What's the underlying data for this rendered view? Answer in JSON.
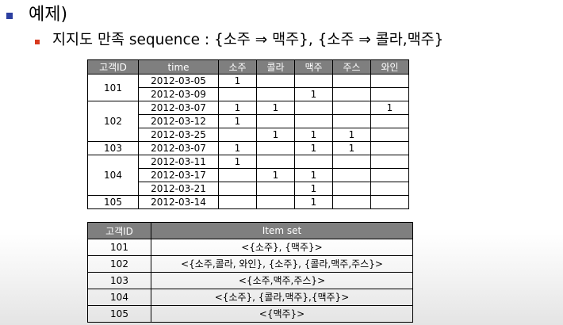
{
  "heading": "예제)",
  "subheading": "지지도 만족 sequence : {소주 ⇒ 맥주}, {소주 ⇒ 콜라,맥주}",
  "sequence_table": {
    "headers": [
      "고객ID",
      "time",
      "소주",
      "콜라",
      "맥주",
      "주스",
      "와인"
    ],
    "groups": [
      {
        "id": "101",
        "rows": [
          {
            "time": "2012-03-05",
            "v": [
              "1",
              "",
              "",
              "",
              ""
            ]
          },
          {
            "time": "2012-03-09",
            "v": [
              "",
              "",
              "1",
              "",
              ""
            ]
          }
        ]
      },
      {
        "id": "102",
        "rows": [
          {
            "time": "2012-03-07",
            "v": [
              "1",
              "1",
              "",
              "",
              "1"
            ]
          },
          {
            "time": "2012-03-12",
            "v": [
              "1",
              "",
              "",
              "",
              ""
            ]
          },
          {
            "time": "2012-03-25",
            "v": [
              "",
              "1",
              "1",
              "1",
              ""
            ]
          }
        ]
      },
      {
        "id": "103",
        "rows": [
          {
            "time": "2012-03-07",
            "v": [
              "1",
              "",
              "1",
              "1",
              ""
            ]
          }
        ]
      },
      {
        "id": "104",
        "rows": [
          {
            "time": "2012-03-11",
            "v": [
              "1",
              "",
              "",
              "",
              ""
            ]
          },
          {
            "time": "2012-03-17",
            "v": [
              "",
              "1",
              "1",
              "",
              ""
            ]
          },
          {
            "time": "2012-03-21",
            "v": [
              "",
              "",
              "1",
              "",
              ""
            ]
          }
        ]
      },
      {
        "id": "105",
        "rows": [
          {
            "time": "2012-03-14",
            "v": [
              "",
              "",
              "1",
              "",
              ""
            ]
          }
        ]
      }
    ]
  },
  "itemset_table": {
    "headers": [
      "고객ID",
      "Item set"
    ],
    "rows": [
      {
        "id": "101",
        "set": "<{소주}, {맥주}>"
      },
      {
        "id": "102",
        "set": "<{소주,콜라, 와인}, {소주}, {콜라,맥주,주스}>"
      },
      {
        "id": "103",
        "set": "<{소주,맥주,주스}>"
      },
      {
        "id": "104",
        "set": "<{소주}, {콜라,맥주},{맥주}>"
      },
      {
        "id": "105",
        "set": "<{맥주}>"
      }
    ]
  },
  "colors": {
    "bullet_main": "#2c3fa0",
    "bullet_sub": "#d83a1e",
    "table_header_bg": "#7f7f7f"
  }
}
